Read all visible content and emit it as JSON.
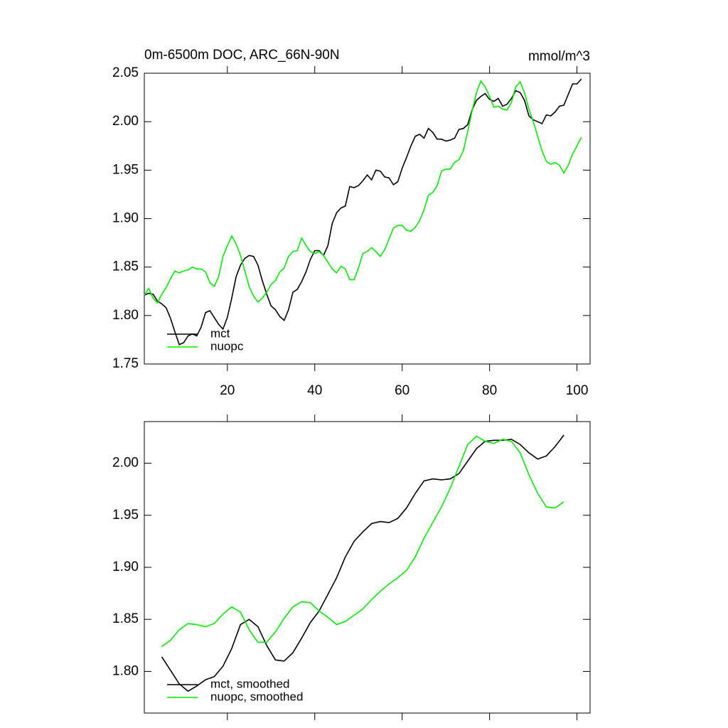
{
  "chart_data": [
    {
      "type": "line",
      "title": "0m-6500m DOC, ARC_66N-90N",
      "subtitle": "mmol/m^3",
      "x": [
        1,
        2,
        3,
        4,
        5,
        6,
        7,
        8,
        9,
        10,
        11,
        12,
        13,
        14,
        15,
        16,
        17,
        18,
        19,
        20,
        21,
        22,
        23,
        24,
        25,
        26,
        27,
        28,
        29,
        30,
        31,
        32,
        33,
        34,
        35,
        36,
        37,
        38,
        39,
        40,
        41,
        42,
        43,
        44,
        45,
        46,
        47,
        48,
        49,
        50,
        51,
        52,
        53,
        54,
        55,
        56,
        57,
        58,
        59,
        60,
        61,
        62,
        63,
        64,
        65,
        66,
        67,
        68,
        69,
        70,
        71,
        72,
        73,
        74,
        75,
        76,
        77,
        78,
        79,
        80,
        81,
        82,
        83,
        84,
        85,
        86,
        87,
        88,
        89,
        90,
        91,
        92,
        93,
        94,
        95,
        96,
        97,
        98,
        99,
        100,
        101
      ],
      "series": [
        {
          "name": "mct",
          "color": "#000000",
          "values": [
            1.821,
            1.823,
            1.822,
            1.815,
            1.812,
            1.808,
            1.797,
            1.783,
            1.77,
            1.772,
            1.779,
            1.781,
            1.779,
            1.788,
            1.803,
            1.805,
            1.798,
            1.791,
            1.786,
            1.798,
            1.818,
            1.84,
            1.852,
            1.859,
            1.862,
            1.861,
            1.852,
            1.836,
            1.822,
            1.81,
            1.806,
            1.799,
            1.795,
            1.806,
            1.824,
            1.827,
            1.835,
            1.845,
            1.858,
            1.867,
            1.867,
            1.862,
            1.872,
            1.895,
            1.906,
            1.911,
            1.913,
            1.933,
            1.932,
            1.934,
            1.939,
            1.945,
            1.94,
            1.95,
            1.949,
            1.943,
            1.942,
            1.935,
            1.938,
            1.952,
            1.963,
            1.975,
            1.985,
            1.987,
            1.983,
            1.993,
            1.989,
            1.982,
            1.982,
            1.98,
            1.981,
            1.983,
            1.992,
            1.993,
            1.997,
            2.012,
            2.022,
            2.026,
            2.029,
            2.023,
            2.021,
            2.024,
            2.016,
            2.018,
            2.024,
            2.032,
            2.03,
            2.022,
            2.006,
            2.002,
            2.0,
            1.998,
            2.007,
            2.006,
            2.01,
            2.016,
            2.017,
            2.028,
            2.039,
            2.039,
            2.044
          ]
        },
        {
          "name": "nuopc",
          "color": "#00ee00",
          "values": [
            1.821,
            1.828,
            1.818,
            1.813,
            1.822,
            1.829,
            1.838,
            1.846,
            1.844,
            1.846,
            1.847,
            1.85,
            1.848,
            1.848,
            1.845,
            1.834,
            1.83,
            1.84,
            1.861,
            1.872,
            1.882,
            1.874,
            1.862,
            1.846,
            1.83,
            1.82,
            1.814,
            1.818,
            1.824,
            1.832,
            1.836,
            1.845,
            1.849,
            1.861,
            1.866,
            1.867,
            1.88,
            1.872,
            1.866,
            1.864,
            1.866,
            1.862,
            1.855,
            1.848,
            1.844,
            1.851,
            1.848,
            1.837,
            1.837,
            1.849,
            1.864,
            1.866,
            1.87,
            1.866,
            1.861,
            1.868,
            1.879,
            1.89,
            1.893,
            1.893,
            1.888,
            1.887,
            1.891,
            1.898,
            1.909,
            1.924,
            1.927,
            1.934,
            1.949,
            1.951,
            1.951,
            1.958,
            1.961,
            1.97,
            1.99,
            2.011,
            2.03,
            2.042,
            2.036,
            2.026,
            2.015,
            2.016,
            2.013,
            2.012,
            2.02,
            2.036,
            2.041,
            2.03,
            2.013,
            2.0,
            1.985,
            1.97,
            1.959,
            1.956,
            1.958,
            1.955,
            1.947,
            1.955,
            1.967,
            1.975,
            1.984
          ]
        }
      ],
      "xlim": [
        1,
        103
      ],
      "xticks": [
        20,
        40,
        60,
        80,
        100
      ],
      "show_xtick_labels": true,
      "ylim": [
        1.75,
        2.05
      ],
      "yticks": [
        1.75,
        {
          "value": 1.8,
          "label": "1.80"
        },
        1.85,
        {
          "value": 1.9,
          "label": "1.90"
        },
        1.95,
        {
          "value": 2.0,
          "label": "2.00"
        },
        2.05
      ]
    },
    {
      "type": "line",
      "x": [
        5,
        7,
        9,
        11,
        13,
        15,
        17,
        19,
        21,
        23,
        25,
        27,
        29,
        31,
        33,
        35,
        37,
        39,
        41,
        43,
        45,
        47,
        49,
        51,
        53,
        55,
        57,
        59,
        61,
        63,
        65,
        67,
        69,
        71,
        73,
        75,
        77,
        79,
        81,
        83,
        85,
        87,
        89,
        91,
        93,
        95,
        97
      ],
      "series": [
        {
          "name": "mct, smoothed",
          "color": "#000000",
          "values": [
            1.814,
            1.801,
            1.788,
            1.781,
            1.786,
            1.792,
            1.795,
            1.805,
            1.822,
            1.845,
            1.85,
            1.843,
            1.825,
            1.811,
            1.81,
            1.818,
            1.832,
            1.847,
            1.858,
            1.874,
            1.89,
            1.91,
            1.925,
            1.934,
            1.942,
            1.944,
            1.943,
            1.947,
            1.957,
            1.971,
            1.983,
            1.985,
            1.984,
            1.985,
            1.99,
            2.002,
            2.014,
            2.021,
            2.022,
            2.022,
            2.023,
            2.018,
            2.01,
            2.004,
            2.007,
            2.016,
            2.027
          ]
        },
        {
          "name": "nuopc, smoothed",
          "color": "#00ee00",
          "values": [
            1.824,
            1.83,
            1.84,
            1.846,
            1.845,
            1.843,
            1.846,
            1.855,
            1.862,
            1.857,
            1.84,
            1.828,
            1.828,
            1.838,
            1.851,
            1.862,
            1.867,
            1.866,
            1.858,
            1.852,
            1.845,
            1.848,
            1.854,
            1.86,
            1.869,
            1.877,
            1.884,
            1.89,
            1.897,
            1.91,
            1.928,
            1.943,
            1.958,
            1.976,
            1.997,
            2.018,
            2.026,
            2.021,
            2.019,
            2.023,
            2.021,
            2.01,
            1.989,
            1.971,
            1.958,
            1.957,
            1.963
          ]
        }
      ],
      "xlim": [
        1,
        103
      ],
      "xticks": [
        20,
        40,
        60,
        80,
        100
      ],
      "show_xtick_labels": false,
      "ylim": [
        1.76,
        2.04
      ],
      "yticks": [
        {
          "value": 1.8,
          "label": "1.80"
        },
        1.85,
        {
          "value": 1.9,
          "label": "1.90"
        },
        1.95,
        {
          "value": 2.0,
          "label": "2.00"
        }
      ]
    }
  ]
}
